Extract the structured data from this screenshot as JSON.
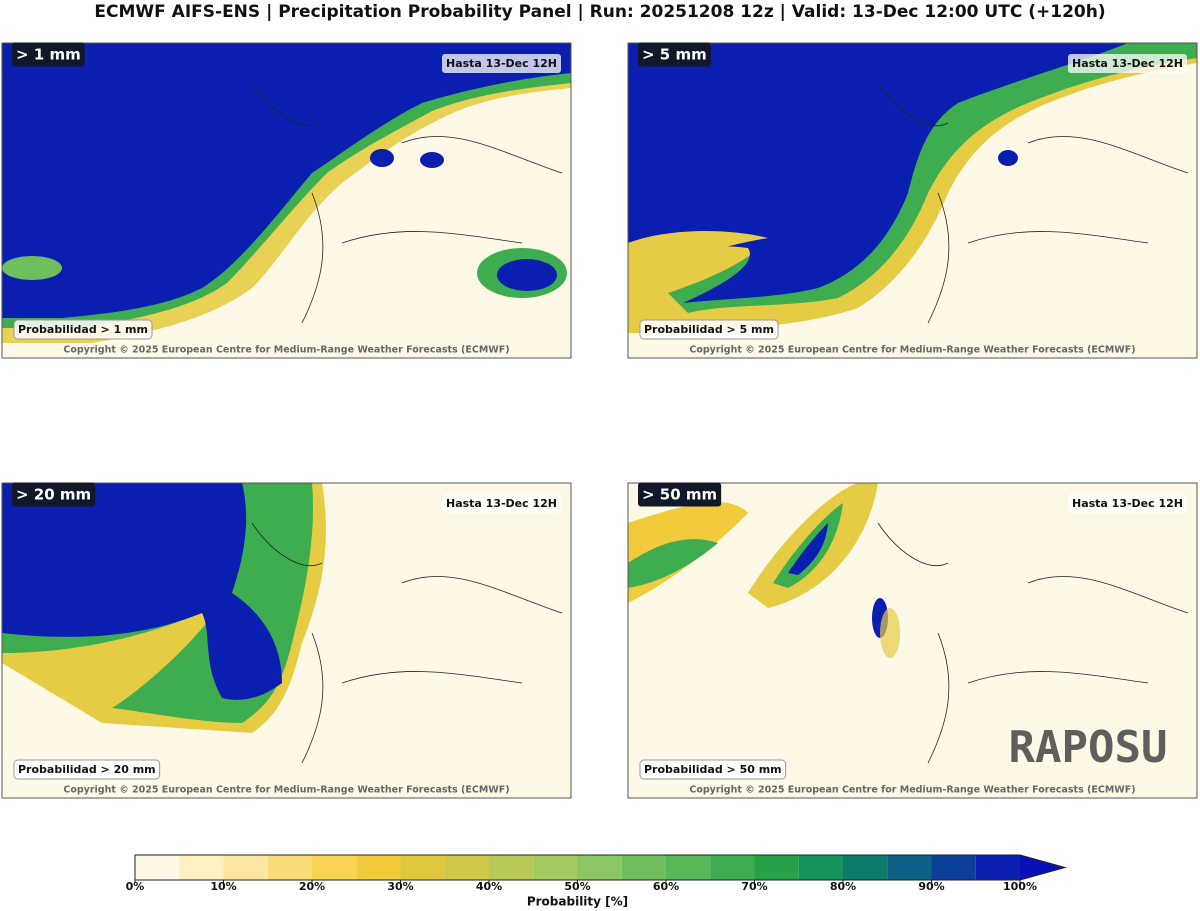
{
  "title": "ECMWF AIFS-ENS | Precipitation Probability Panel | Run: 20251208 12z | Valid: 13-Dec 12:00 UTC (+120h)",
  "panels": [
    {
      "label": "> 1 mm",
      "valid": "Hasta 13-Dec 12H",
      "caption": "Probabilidad > 1 mm",
      "copyright": "Copyright © 2025 European Centre for Medium-Range Weather Forecasts (ECMWF)"
    },
    {
      "label": "> 5 mm",
      "valid": "Hasta 13-Dec 12H",
      "caption": "Probabilidad > 5 mm",
      "copyright": "Copyright © 2025 European Centre for Medium-Range Weather Forecasts (ECMWF)"
    },
    {
      "label": "> 20 mm",
      "valid": "Hasta 13-Dec 12H",
      "caption": "Probabilidad > 20 mm",
      "copyright": "Copyright © 2025 European Centre for Medium-Range Weather Forecasts (ECMWF)"
    },
    {
      "label": "> 50 mm",
      "valid": "Hasta 13-Dec 12H",
      "caption": "Probabilidad > 50 mm",
      "copyright": "Copyright © 2025 European Centre for Medium-Range Weather Forecasts (ECMWF)"
    }
  ],
  "colorbar": {
    "label": "Probability [%]",
    "levels": [
      0,
      5,
      10,
      15,
      20,
      25,
      30,
      35,
      40,
      45,
      50,
      55,
      60,
      65,
      70,
      75,
      80,
      85,
      90,
      95,
      100
    ],
    "colors": [
      "#fdf9e6",
      "#fdf0c2",
      "#fde7a0",
      "#fbdc78",
      "#f8d251",
      "#f1cb3c",
      "#e0c83c",
      "#cdc847",
      "#b9c955",
      "#a3c95f",
      "#8ac664",
      "#6fbf5f",
      "#55b757",
      "#3dad50",
      "#26a148",
      "#14935c",
      "#0d7b6b",
      "#0d5f85",
      "#0c3f9a",
      "#0a1eb0"
    ],
    "extend_color": "#0a10b8",
    "ticks": [
      {
        "value": 0,
        "label": "0%"
      },
      {
        "value": 10,
        "label": "10%"
      },
      {
        "value": 20,
        "label": "20%"
      },
      {
        "value": 30,
        "label": "30%"
      },
      {
        "value": 40,
        "label": "40%"
      },
      {
        "value": 50,
        "label": "50%"
      },
      {
        "value": 60,
        "label": "60%"
      },
      {
        "value": 70,
        "label": "70%"
      },
      {
        "value": 80,
        "label": "80%"
      },
      {
        "value": 90,
        "label": "90%"
      },
      {
        "value": 100,
        "label": "100%"
      }
    ]
  },
  "watermark": "RAPOSU"
}
